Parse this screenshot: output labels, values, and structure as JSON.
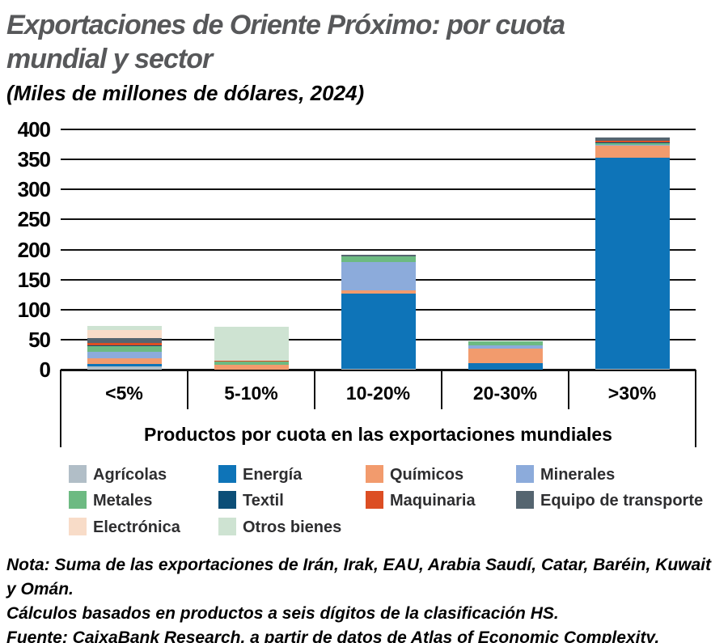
{
  "header": {
    "title_line1": "Exportaciones de Oriente Próximo: por cuota",
    "title_line2": "mundial y sector",
    "subtitle": "(Miles de millones de dólares, 2024)"
  },
  "chart_data": {
    "type": "bar",
    "stacked": true,
    "title": "Exportaciones de Oriente Próximo: por cuota mundial y sector",
    "subtitle": "(Miles de millones de dólares, 2024)",
    "categories": [
      "<5%",
      "5-10%",
      "10-20%",
      "20-30%",
      ">30%"
    ],
    "xlabel": "Productos por cuota en las exportaciones mundiales",
    "ylabel": "",
    "ylim": [
      0,
      400
    ],
    "ytick_step": 50,
    "grid": true,
    "legend_position": "bottom",
    "series": [
      {
        "name": "Agrícolas",
        "color": "#b1bec7",
        "values": [
          6,
          0,
          1,
          0,
          2
        ]
      },
      {
        "name": "Energía",
        "color": "#0e74b8",
        "values": [
          3,
          0,
          126,
          11,
          351
        ]
      },
      {
        "name": "Químicos",
        "color": "#f29b6d",
        "values": [
          10,
          8,
          5,
          24,
          21
        ]
      },
      {
        "name": "Minerales",
        "color": "#8cabdb",
        "values": [
          11,
          0,
          47,
          5,
          1
        ]
      },
      {
        "name": "Metales",
        "color": "#6dba82",
        "values": [
          9,
          5,
          10,
          7,
          2
        ]
      },
      {
        "name": "Textil",
        "color": "#0c4e77",
        "values": [
          2,
          0,
          0,
          0,
          2
        ]
      },
      {
        "name": "Maquinaria",
        "color": "#dc4e23",
        "values": [
          4,
          2,
          0,
          0,
          2
        ]
      },
      {
        "name": "Equipo de transporte",
        "color": "#556570",
        "values": [
          8,
          0,
          2,
          0,
          5
        ]
      },
      {
        "name": "Electrónica",
        "color": "#f8dcc8",
        "values": [
          13,
          0,
          0,
          0,
          0
        ]
      },
      {
        "name": "Otros bienes",
        "color": "#cee3d2",
        "values": [
          7,
          57,
          0,
          0,
          0
        ]
      }
    ]
  },
  "footer": {
    "note_prefix": "Nota:",
    "note_text": " Suma de las exportaciones de Irán, Irak, EAU, Arabia Saudí, Catar, Baréin, Kuwait y Omán.",
    "note_line2": "Cálculos basados en productos a seis dígitos de la clasificación HS.",
    "source_prefix": "Fuente:",
    "source_text": " CaixaBank Research, a partir de datos de Atlas of Economic Complexity."
  },
  "colors": {
    "title_text": "#57585a",
    "axis": "#111111",
    "background": "#ffffff"
  }
}
